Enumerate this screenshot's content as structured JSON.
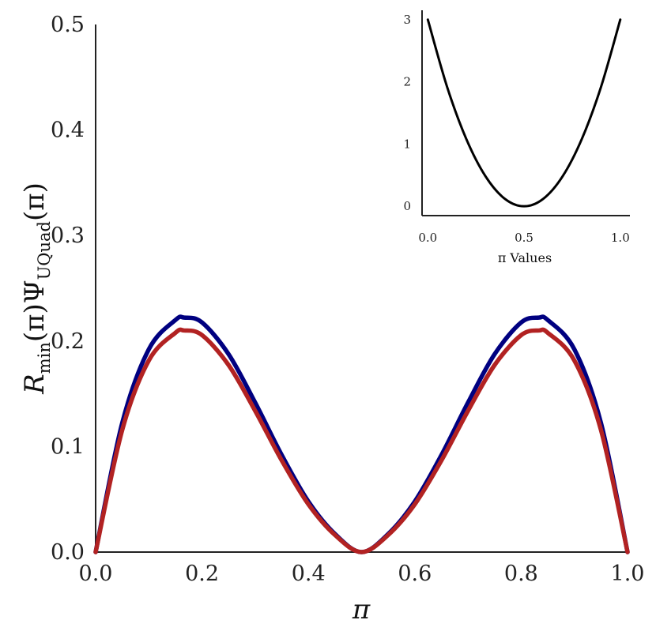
{
  "chart_data": [
    {
      "type": "line",
      "title": "",
      "xlabel": "π",
      "ylabel": "R_min(π)Ψ_UQuad(π)",
      "ylabel_parts": {
        "base": "R",
        "sub1": "min",
        "mid": "(π)Ψ",
        "sub2": "UQuad",
        "end": "(π)"
      },
      "xlim": [
        0.0,
        1.0
      ],
      "ylim": [
        0.0,
        0.5
      ],
      "xticks": [
        "0.0",
        "0.2",
        "0.4",
        "0.6",
        "0.8",
        "1.0"
      ],
      "yticks": [
        "0.0",
        "0.1",
        "0.2",
        "0.3",
        "0.4",
        "0.5"
      ],
      "grid": false,
      "series": [
        {
          "color": "#000080",
          "x": [
            0.0,
            0.05,
            0.1,
            0.15,
            0.1667,
            0.2,
            0.25,
            0.3,
            0.35,
            0.4,
            0.45,
            0.5,
            0.55,
            0.6,
            0.65,
            0.7,
            0.75,
            0.8,
            0.8333,
            0.85,
            0.9,
            0.95,
            1.0
          ],
          "y": [
            0.0,
            0.1224,
            0.1922,
            0.2199,
            0.2222,
            0.2176,
            0.1875,
            0.1416,
            0.0918,
            0.0479,
            0.0171,
            0.0,
            0.0171,
            0.0479,
            0.0918,
            0.1416,
            0.1875,
            0.2176,
            0.2222,
            0.2199,
            0.1922,
            0.1224,
            0.0
          ]
        },
        {
          "color": "#b22222",
          "x": [
            0.0,
            0.05,
            0.1,
            0.15,
            0.1667,
            0.2,
            0.25,
            0.3,
            0.35,
            0.4,
            0.45,
            0.5,
            0.55,
            0.6,
            0.65,
            0.7,
            0.75,
            0.8,
            0.8333,
            0.85,
            0.9,
            0.95,
            1.0
          ],
          "y": [
            0.0,
            0.1157,
            0.1816,
            0.2078,
            0.21,
            0.2056,
            0.1772,
            0.1338,
            0.0867,
            0.0453,
            0.0162,
            0.0,
            0.0162,
            0.0453,
            0.0867,
            0.1338,
            0.1772,
            0.2056,
            0.21,
            0.2078,
            0.1816,
            0.1157,
            0.0
          ]
        }
      ]
    },
    {
      "type": "line",
      "title": "",
      "xlabel": "π Values",
      "ylabel": "",
      "xlim": [
        -0.03,
        1.05
      ],
      "ylim": [
        -0.15,
        3.15
      ],
      "xticks": [
        "0.0",
        "0.5",
        "1.0"
      ],
      "yticks": [
        "0",
        "1",
        "2",
        "3"
      ],
      "grid": false,
      "series": [
        {
          "color": "#000000",
          "x": [
            0.0,
            0.1,
            0.2,
            0.3,
            0.4,
            0.5,
            0.6,
            0.7,
            0.8,
            0.9,
            1.0
          ],
          "y": [
            3.0,
            1.92,
            1.08,
            0.48,
            0.12,
            0.0,
            0.12,
            0.48,
            1.08,
            1.92,
            3.0
          ]
        }
      ]
    }
  ]
}
